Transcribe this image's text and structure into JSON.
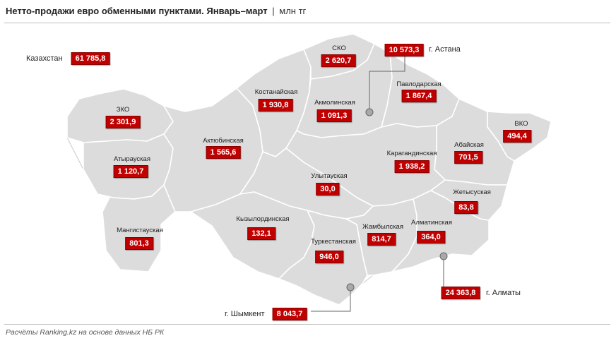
{
  "title": "Нетто-продажи евро обменными пунктами. Январь–март",
  "separator": "|",
  "unit": "млн тг",
  "source": "Расчёты Ranking.kz на основе данных НБ РК",
  "colors": {
    "region_fill": "#dcdcdc",
    "value_box": "#c00000",
    "border": "#ffffff"
  },
  "total": {
    "label": "Казахстан",
    "value": "61 785,8"
  },
  "regions": {
    "zko": {
      "name": "ЗКО",
      "value": "2 301,9"
    },
    "atyrau": {
      "name": "Атырауская",
      "value": "1 120,7"
    },
    "mangystau": {
      "name": "Мангистауская",
      "value": "801,3"
    },
    "aktobe": {
      "name": "Актюбинская",
      "value": "1 565,6"
    },
    "kostanay": {
      "name": "Костанайская",
      "value": "1 930,8"
    },
    "sko": {
      "name": "СКО",
      "value": "2 620,7"
    },
    "akmola": {
      "name": "Акмолинская",
      "value": "1 091,3"
    },
    "pavlodar": {
      "name": "Павлодарская",
      "value": "1 867,4"
    },
    "vko": {
      "name": "ВКО",
      "value": "494,4"
    },
    "abai": {
      "name": "Абайская",
      "value": "701,5"
    },
    "karaganda": {
      "name": "Карагандинская",
      "value": "1 938,2"
    },
    "ulytau": {
      "name": "Улытауская",
      "value": "30,0"
    },
    "kyzylorda": {
      "name": "Кызылординская",
      "value": "132,1"
    },
    "turkestan": {
      "name": "Туркестанская",
      "value": "946,0"
    },
    "zhambyl": {
      "name": "Жамбылская",
      "value": "814,7"
    },
    "almaty_reg": {
      "name": "Алматинская",
      "value": "364,0"
    },
    "zhetysu": {
      "name": "Жетысуская",
      "value": "83,8"
    }
  },
  "cities": {
    "astana": {
      "name": "г. Астана",
      "value": "10 573,3"
    },
    "almaty": {
      "name": "г. Алматы",
      "value": "24 363,8"
    },
    "shymkent": {
      "name": "г. Шымкент",
      "value": "8 043,7"
    }
  }
}
